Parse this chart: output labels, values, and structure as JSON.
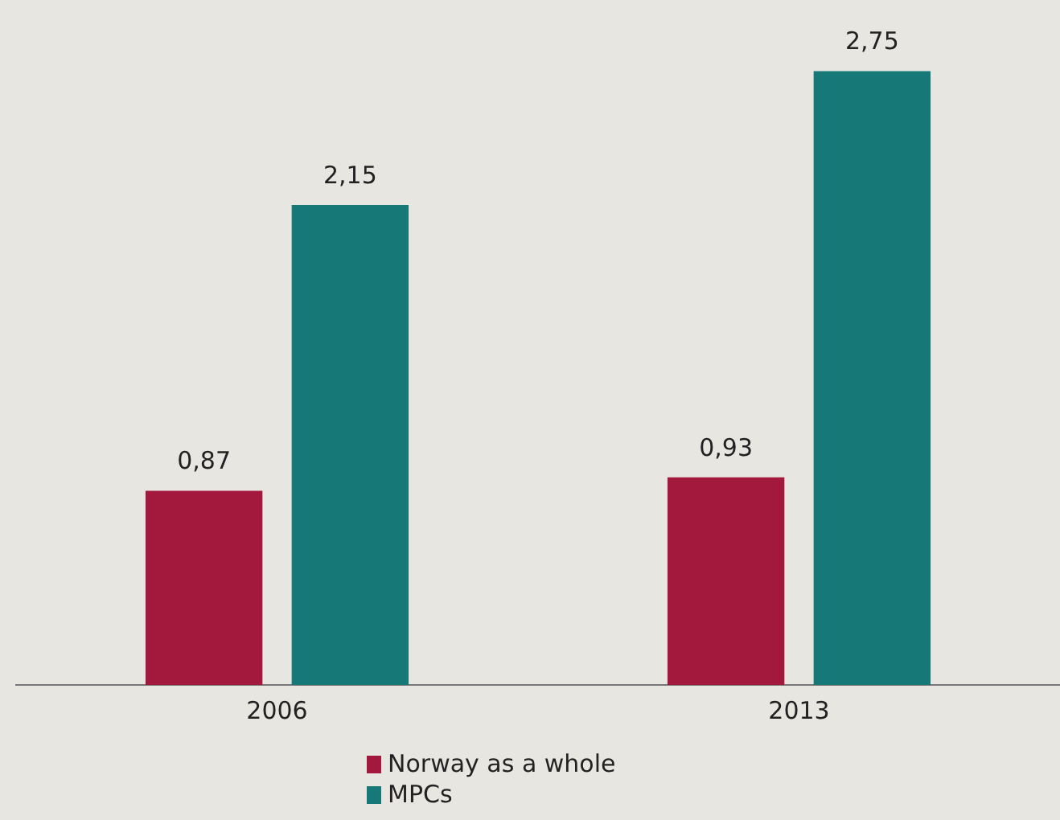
{
  "chart_data": {
    "type": "bar",
    "categories": [
      "2006",
      "2013"
    ],
    "series": [
      {
        "name": "Norway as a whole",
        "color": "#a3193e",
        "values": [
          0.87,
          0.93
        ],
        "value_labels": [
          "0,87",
          "0,93"
        ]
      },
      {
        "name": "MPCs",
        "color": "#177878",
        "values": [
          2.15,
          2.75
        ],
        "value_labels": [
          "2,15",
          "2,75"
        ]
      }
    ],
    "legend": "bottom",
    "grid": false,
    "tick_labels": "x"
  }
}
